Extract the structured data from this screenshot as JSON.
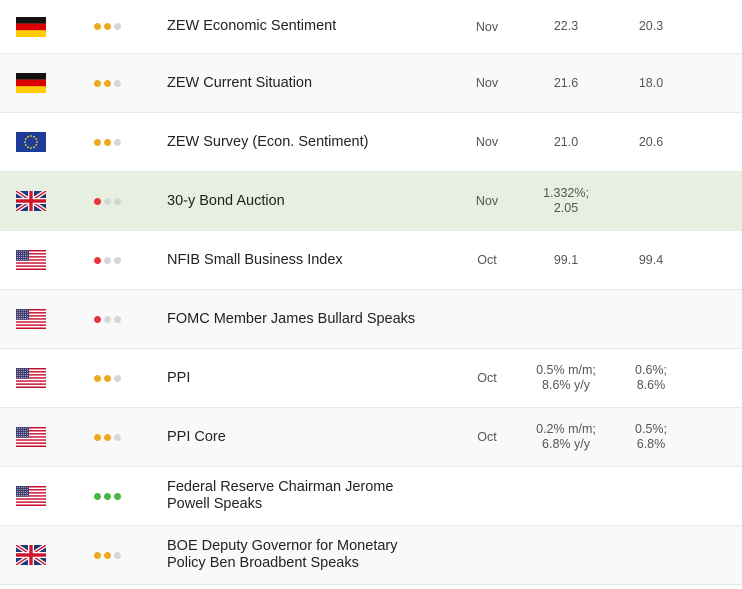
{
  "colors": {
    "importance_high": "#f0a81c",
    "importance_red": "#e8323c",
    "importance_green": "#4bb543",
    "importance_off": "#d6d6d6",
    "highlight_row": "#e6efe0"
  },
  "rows": [
    {
      "flag": "germany-flag-icon",
      "importance": {
        "level": 2,
        "color": "orange"
      },
      "event": "ZEW Economic Sentiment",
      "period": "Nov",
      "actual": "22.3",
      "forecast": "20.3"
    },
    {
      "flag": "germany-flag-icon",
      "importance": {
        "level": 2,
        "color": "orange"
      },
      "event": "ZEW Current Situation",
      "period": "Nov",
      "actual": "21.6",
      "forecast": "18.0"
    },
    {
      "flag": "eu-flag-icon",
      "importance": {
        "level": 2,
        "color": "orange"
      },
      "event": "ZEW Survey (Econ. Sentiment)",
      "period": "Nov",
      "actual": "21.0",
      "forecast": "20.6"
    },
    {
      "flag": "uk-flag-icon",
      "importance": {
        "level": 1,
        "color": "red"
      },
      "event": "30-y Bond Auction",
      "period": "Nov",
      "actual": "1.332%;\n2.05",
      "forecast": ""
    },
    {
      "flag": "usa-flag-icon",
      "importance": {
        "level": 1,
        "color": "red"
      },
      "event": "NFIB Small Business Index",
      "period": "Oct",
      "actual": "99.1",
      "forecast": "99.4"
    },
    {
      "flag": "usa-flag-icon",
      "importance": {
        "level": 1,
        "color": "red"
      },
      "event": "FOMC Member James Bullard Speaks",
      "period": "",
      "actual": "",
      "forecast": ""
    },
    {
      "flag": "usa-flag-icon",
      "importance": {
        "level": 2,
        "color": "orange"
      },
      "event": "PPI",
      "period": "Oct",
      "actual": "0.5% m/m;\n8.6% y/y",
      "forecast": "0.6%;\n8.6%"
    },
    {
      "flag": "usa-flag-icon",
      "importance": {
        "level": 2,
        "color": "orange"
      },
      "event": "PPI Core",
      "period": "Oct",
      "actual": "0.2% m/m;\n6.8% y/y",
      "forecast": "0.5%;\n6.8%"
    },
    {
      "flag": "usa-flag-icon",
      "importance": {
        "level": 3,
        "color": "green"
      },
      "event": "Federal Reserve Chairman Jerome\nPowell Speaks",
      "period": "",
      "actual": "",
      "forecast": ""
    },
    {
      "flag": "uk-flag-icon",
      "importance": {
        "level": 2,
        "color": "orange"
      },
      "event": "BOE Deputy Governor for Monetary\nPolicy Ben Broadbent Speaks",
      "period": "",
      "actual": "",
      "forecast": ""
    }
  ]
}
